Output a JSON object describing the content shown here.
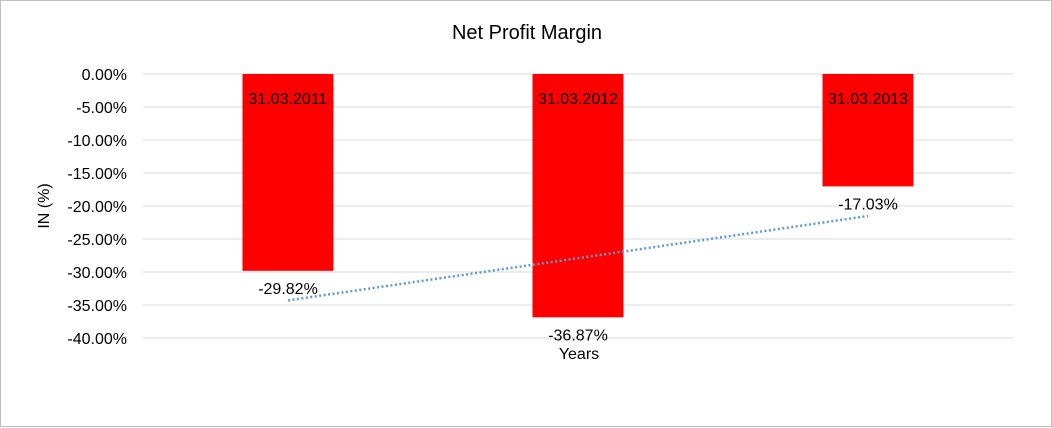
{
  "chart_data": {
    "type": "bar",
    "title": "Net Profit Margin",
    "xlabel": "Years",
    "ylabel": "IN (%)",
    "categories": [
      "31.03.2011",
      "31.03.2012",
      "31.03.2013"
    ],
    "values": [
      -29.82,
      -36.87,
      -17.03
    ],
    "data_labels": [
      "-29.82%",
      "-36.87%",
      "-17.03%"
    ],
    "y_ticks": [
      "0.00%",
      "-5.00%",
      "-10.00%",
      "-15.00%",
      "-20.00%",
      "-25.00%",
      "-30.00%",
      "-35.00%",
      "-40.00%"
    ],
    "y_tick_values": [
      0,
      -5,
      -10,
      -15,
      -20,
      -25,
      -30,
      -35,
      -40
    ],
    "ylim": [
      -40,
      0
    ],
    "grid": true,
    "legend": "none",
    "trendline": {
      "type": "linear",
      "style": "dotted"
    },
    "colors": {
      "bar": "#ff0000",
      "trendline": "#5b9bd5",
      "grid": "#d9d9d9",
      "axis": "#bfbfbf"
    }
  }
}
